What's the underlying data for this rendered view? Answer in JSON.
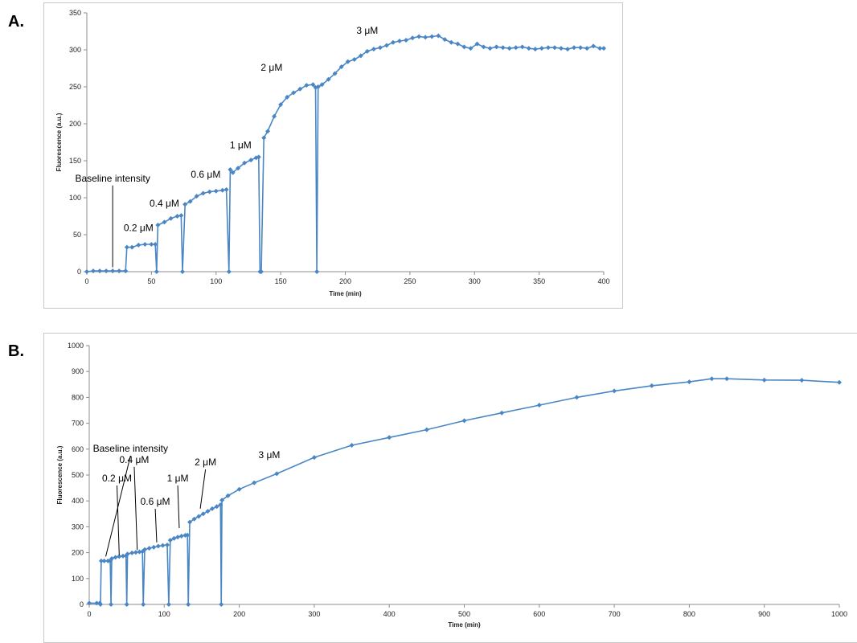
{
  "panels": [
    {
      "letter": "A."
    },
    {
      "letter": "B."
    }
  ],
  "colors": {
    "series": "#4a86c5",
    "axis": "#8c8c8c",
    "frame": "#c8c8c8"
  },
  "chart_data": [
    {
      "type": "line",
      "xlabel": "Time (min)",
      "ylabel": "Fluorescence (a.u.)",
      "xlim": [
        0,
        400
      ],
      "ylim": [
        0,
        350
      ],
      "xticks": [
        0,
        50,
        100,
        150,
        200,
        250,
        300,
        350,
        400
      ],
      "yticks": [
        0,
        50,
        100,
        150,
        200,
        250,
        300,
        350
      ],
      "grid": false,
      "marker": "diamond",
      "points": [
        [
          0,
          0
        ],
        [
          5,
          1
        ],
        [
          10,
          1
        ],
        [
          15,
          1
        ],
        [
          20,
          1
        ],
        [
          25,
          1
        ],
        [
          30,
          1
        ],
        [
          31,
          33
        ],
        [
          35,
          33
        ],
        [
          40,
          36
        ],
        [
          45,
          37
        ],
        [
          50,
          37
        ],
        [
          53,
          37
        ],
        [
          54,
          0
        ],
        [
          55,
          63
        ],
        [
          60,
          67
        ],
        [
          65,
          72
        ],
        [
          70,
          75
        ],
        [
          73,
          76
        ],
        [
          74,
          0
        ],
        [
          76,
          91
        ],
        [
          80,
          95
        ],
        [
          85,
          102
        ],
        [
          90,
          106
        ],
        [
          95,
          108
        ],
        [
          100,
          109
        ],
        [
          105,
          110
        ],
        [
          108,
          111
        ],
        [
          110,
          0
        ],
        [
          111,
          138
        ],
        [
          113,
          134
        ],
        [
          117,
          140
        ],
        [
          122,
          147
        ],
        [
          127,
          151
        ],
        [
          131,
          154
        ],
        [
          133,
          155
        ],
        [
          134,
          0
        ],
        [
          135,
          0
        ],
        [
          137,
          181
        ],
        [
          140,
          190
        ],
        [
          145,
          210
        ],
        [
          150,
          226
        ],
        [
          155,
          236
        ],
        [
          160,
          242
        ],
        [
          165,
          247
        ],
        [
          170,
          252
        ],
        [
          175,
          253
        ],
        [
          177,
          249
        ],
        [
          178,
          0
        ],
        [
          179,
          250
        ],
        [
          182,
          253
        ],
        [
          187,
          260
        ],
        [
          192,
          268
        ],
        [
          197,
          277
        ],
        [
          202,
          284
        ],
        [
          207,
          287
        ],
        [
          212,
          292
        ],
        [
          217,
          298
        ],
        [
          222,
          301
        ],
        [
          227,
          303
        ],
        [
          232,
          306
        ],
        [
          237,
          310
        ],
        [
          242,
          312
        ],
        [
          247,
          313
        ],
        [
          252,
          316
        ],
        [
          257,
          318
        ],
        [
          262,
          317
        ],
        [
          267,
          318
        ],
        [
          272,
          319
        ],
        [
          277,
          314
        ],
        [
          282,
          310
        ],
        [
          287,
          308
        ],
        [
          292,
          304
        ],
        [
          297,
          302
        ],
        [
          302,
          308
        ],
        [
          307,
          304
        ],
        [
          312,
          302
        ],
        [
          317,
          304
        ],
        [
          322,
          303
        ],
        [
          327,
          302
        ],
        [
          332,
          303
        ],
        [
          337,
          304
        ],
        [
          342,
          302
        ],
        [
          347,
          301
        ],
        [
          352,
          302
        ],
        [
          357,
          303
        ],
        [
          362,
          303
        ],
        [
          367,
          302
        ],
        [
          372,
          301
        ],
        [
          377,
          303
        ],
        [
          382,
          303
        ],
        [
          387,
          302
        ],
        [
          392,
          305
        ],
        [
          397,
          302
        ],
        [
          400,
          302
        ]
      ],
      "annotations": [
        {
          "text": "Baseline intensity",
          "x": 20,
          "y": 122,
          "arrow_to": [
            20,
            6
          ]
        },
        {
          "text": "0.2 μM",
          "x": 40,
          "y": 55
        },
        {
          "text": "0.4 μM",
          "x": 60,
          "y": 88
        },
        {
          "text": "0.6 μM",
          "x": 92,
          "y": 127
        },
        {
          "text": "1 μM",
          "x": 119,
          "y": 167
        },
        {
          "text": "2 μM",
          "x": 143,
          "y": 272
        },
        {
          "text": "3 μM",
          "x": 217,
          "y": 322
        }
      ]
    },
    {
      "type": "line",
      "xlabel": "Time (min)",
      "ylabel": "Fluorescence (a.u.)",
      "xlim": [
        0,
        1000
      ],
      "ylim": [
        0,
        1000
      ],
      "xticks": [
        0,
        100,
        200,
        300,
        400,
        500,
        600,
        700,
        800,
        900,
        1000
      ],
      "yticks": [
        0,
        100,
        200,
        300,
        400,
        500,
        600,
        700,
        800,
        900,
        1000
      ],
      "grid": false,
      "marker": "diamond",
      "points": [
        [
          0,
          5
        ],
        [
          10,
          5
        ],
        [
          14,
          5
        ],
        [
          15,
          0
        ],
        [
          16,
          168
        ],
        [
          20,
          168
        ],
        [
          25,
          168
        ],
        [
          28,
          168
        ],
        [
          29,
          0
        ],
        [
          30,
          177
        ],
        [
          35,
          182
        ],
        [
          40,
          185
        ],
        [
          45,
          187
        ],
        [
          49,
          188
        ],
        [
          50,
          0
        ],
        [
          51,
          195
        ],
        [
          57,
          199
        ],
        [
          62,
          201
        ],
        [
          67,
          203
        ],
        [
          71,
          204
        ],
        [
          72,
          0
        ],
        [
          74,
          212
        ],
        [
          80,
          217
        ],
        [
          86,
          221
        ],
        [
          92,
          225
        ],
        [
          98,
          228
        ],
        [
          104,
          230
        ],
        [
          106,
          0
        ],
        [
          108,
          248
        ],
        [
          113,
          255
        ],
        [
          118,
          260
        ],
        [
          123,
          264
        ],
        [
          128,
          267
        ],
        [
          131,
          268
        ],
        [
          132,
          0
        ],
        [
          134,
          318
        ],
        [
          140,
          330
        ],
        [
          146,
          340
        ],
        [
          152,
          350
        ],
        [
          158,
          360
        ],
        [
          164,
          370
        ],
        [
          170,
          378
        ],
        [
          175,
          385
        ],
        [
          176,
          0
        ],
        [
          177,
          403
        ],
        [
          185,
          420
        ],
        [
          200,
          445
        ],
        [
          220,
          470
        ],
        [
          250,
          505
        ],
        [
          300,
          568
        ],
        [
          350,
          615
        ],
        [
          400,
          645
        ],
        [
          450,
          675
        ],
        [
          500,
          710
        ],
        [
          550,
          740
        ],
        [
          600,
          770
        ],
        [
          650,
          800
        ],
        [
          700,
          825
        ],
        [
          750,
          845
        ],
        [
          800,
          860
        ],
        [
          830,
          872
        ],
        [
          850,
          872
        ],
        [
          900,
          867
        ],
        [
          950,
          866
        ],
        [
          1000,
          858
        ]
      ],
      "annotations": [
        {
          "text": "Baseline intensity",
          "x": 55,
          "y": 590,
          "arrow_to": [
            22,
            185
          ]
        },
        {
          "text": "0.2 μM",
          "x": 37,
          "y": 475,
          "arrow_to": [
            40,
            190
          ]
        },
        {
          "text": "0.4 μM",
          "x": 60,
          "y": 547,
          "arrow_to": [
            64,
            210
          ]
        },
        {
          "text": "0.6 μM",
          "x": 88,
          "y": 385,
          "arrow_to": [
            90,
            240
          ]
        },
        {
          "text": "1 μM",
          "x": 118,
          "y": 475,
          "arrow_to": [
            120,
            295
          ]
        },
        {
          "text": "2 μM",
          "x": 155,
          "y": 537,
          "arrow_to": [
            148,
            370
          ]
        },
        {
          "text": "3 μM",
          "x": 240,
          "y": 565
        }
      ]
    }
  ]
}
